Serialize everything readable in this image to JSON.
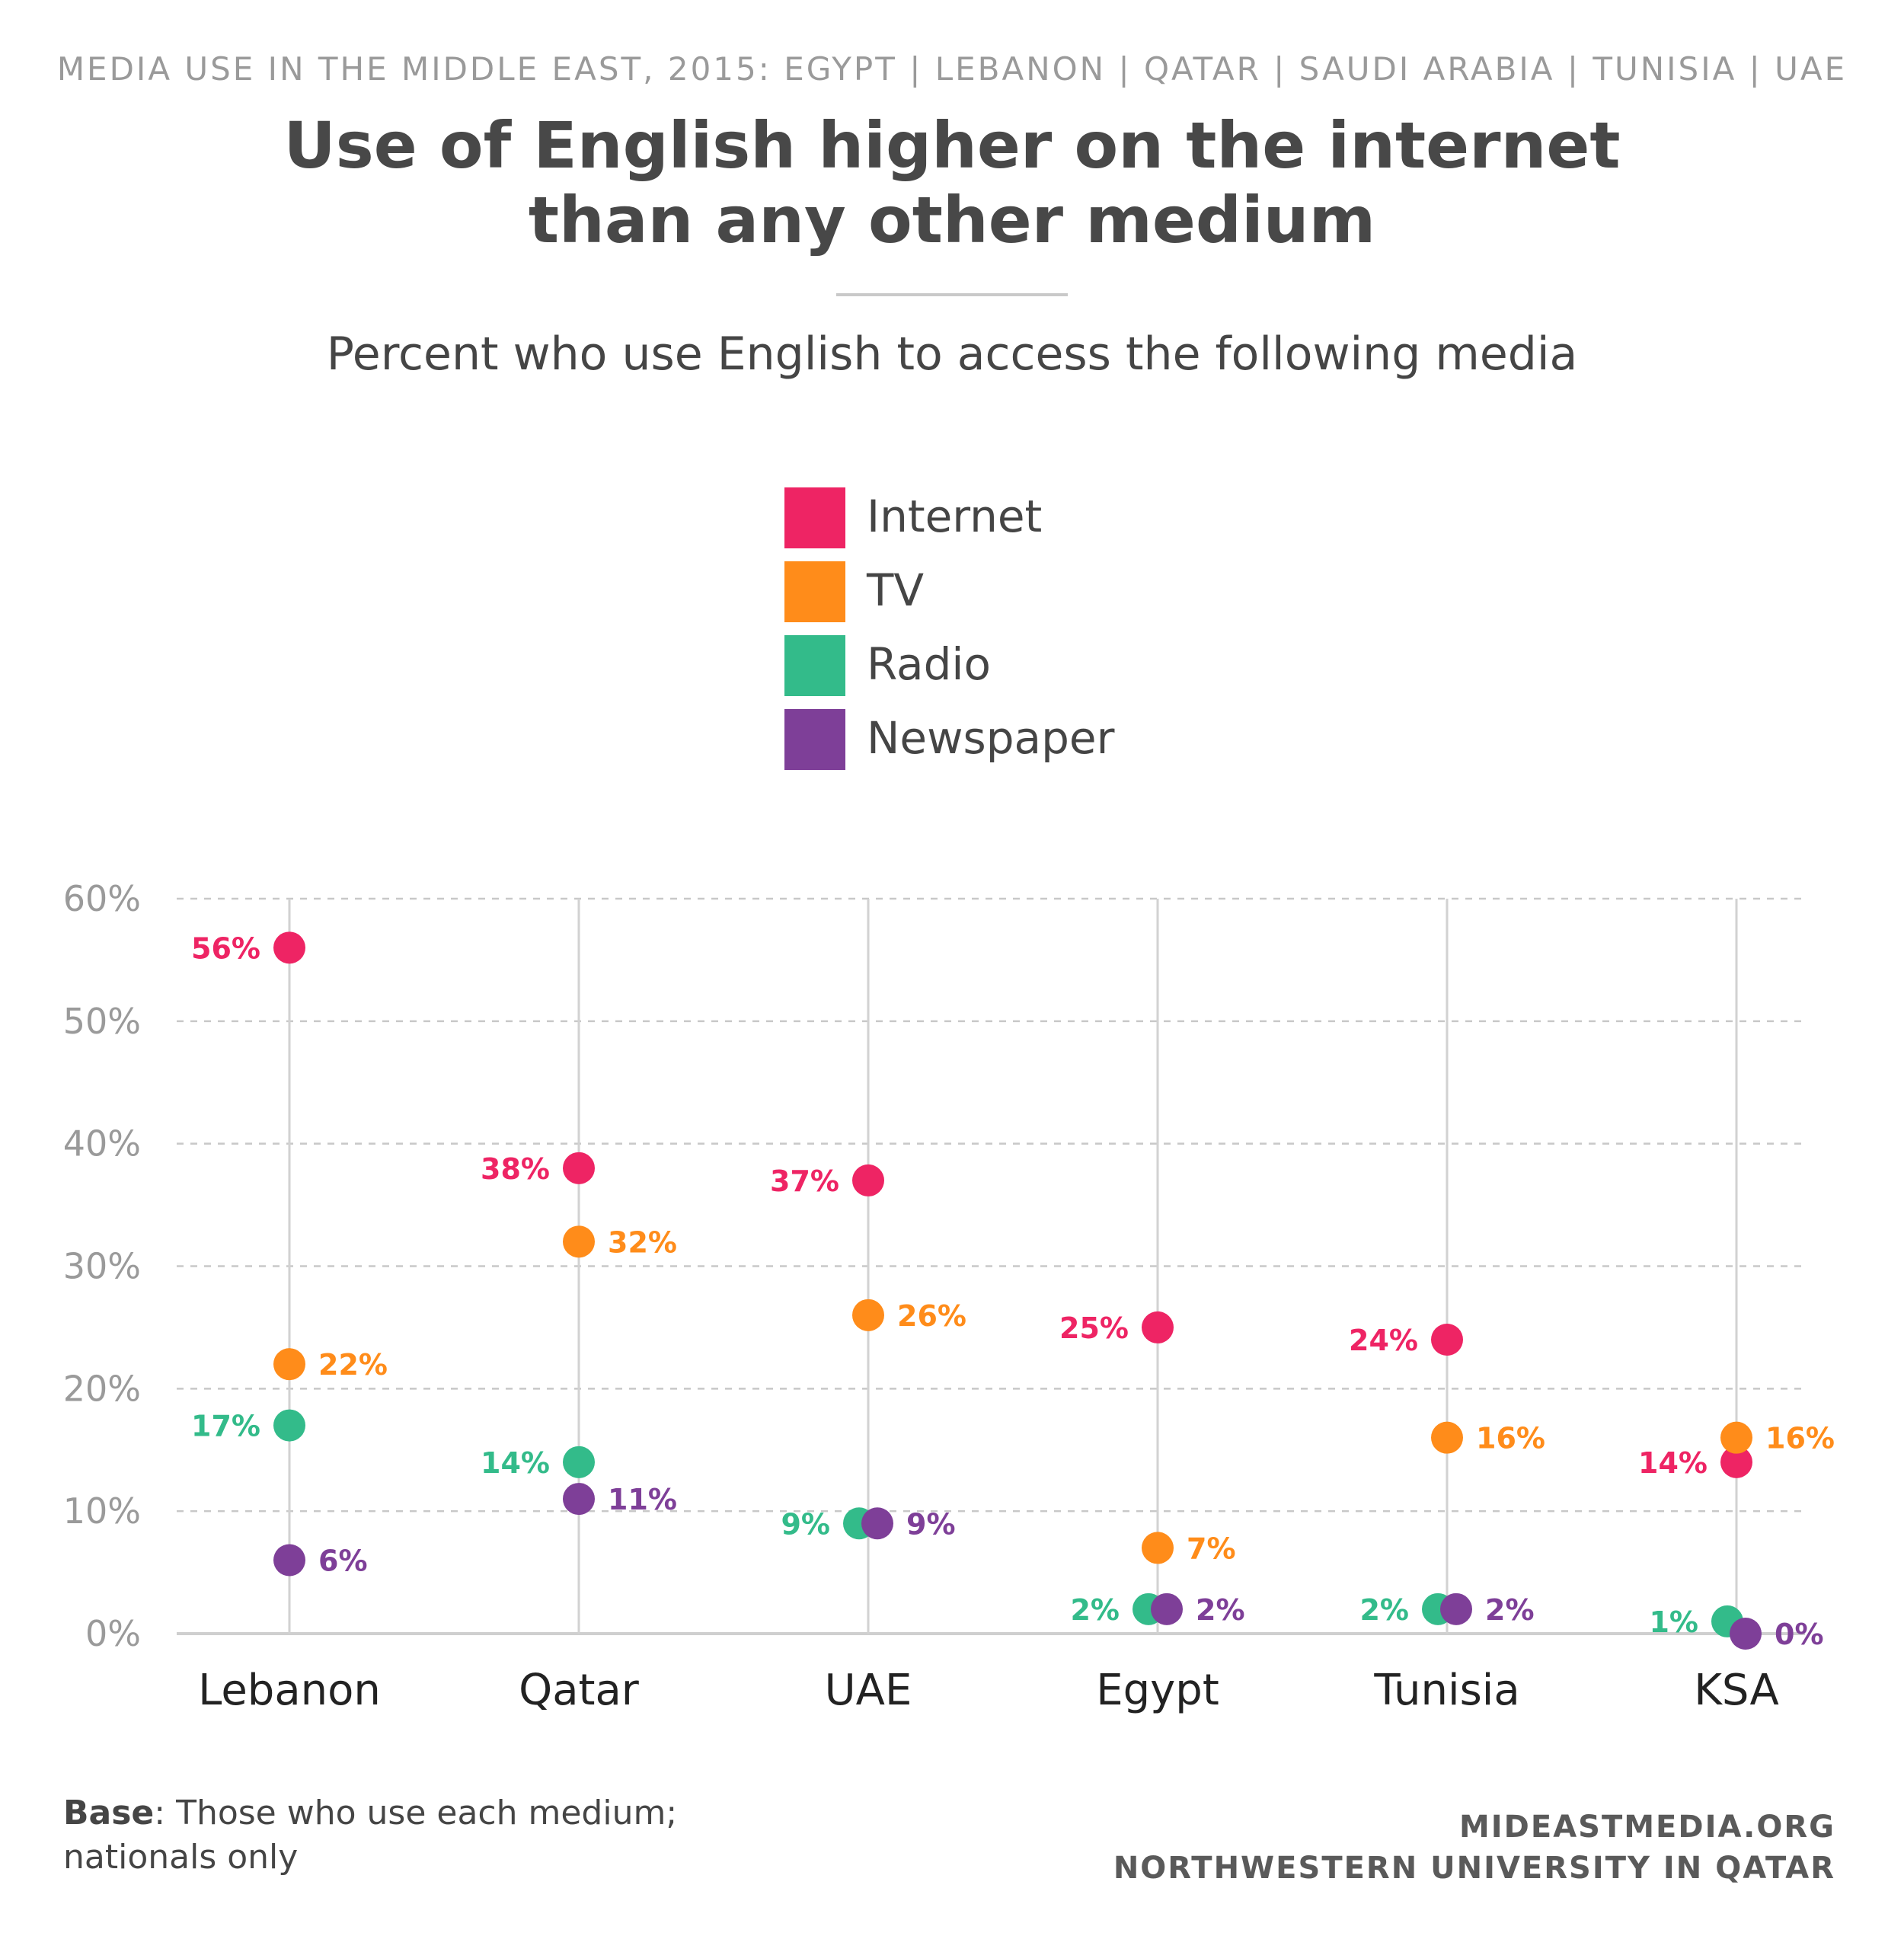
{
  "header": {
    "supertitle": "MEDIA USE IN THE MIDDLE EAST, 2015: EGYPT | LEBANON | QATAR | SAUDI ARABIA | TUNISIA | UAE",
    "title_line1": "Use of English higher on the internet",
    "title_line2": "than any other medium",
    "subtitle": "Percent who use English to access the following media"
  },
  "footer": {
    "base_label": "Base",
    "base_text": ": Those who use each medium;",
    "base_text2": "nationals only",
    "credit_line1": "MIDEASTMEDIA.ORG",
    "credit_line2": "NORTHWESTERN UNIVERSITY IN QATAR"
  },
  "chart_data": {
    "type": "scatter",
    "title": "Use of English higher on the internet than any other medium",
    "subtitle": "Percent who use English to access the following media",
    "categories": [
      "Lebanon",
      "Qatar",
      "UAE",
      "Egypt",
      "Tunisia",
      "KSA"
    ],
    "ylim": [
      0,
      60
    ],
    "yticks": [
      0,
      10,
      20,
      30,
      40,
      50,
      60
    ],
    "ytick_labels": [
      "0%",
      "10%",
      "20%",
      "30%",
      "40%",
      "50%",
      "60%"
    ],
    "grid": "horizontal-dashed",
    "legend_position": "top-center",
    "series": [
      {
        "name": "Internet",
        "color": "#ee2464",
        "values": [
          56,
          38,
          37,
          25,
          24,
          14
        ],
        "labels": [
          "56%",
          "38%",
          "37%",
          "25%",
          "24%",
          "14%"
        ]
      },
      {
        "name": "TV",
        "color": "#ff8c1a",
        "values": [
          22,
          32,
          26,
          7,
          16,
          16
        ],
        "labels": [
          "22%",
          "32%",
          "26%",
          "7%",
          "16%",
          "16%"
        ]
      },
      {
        "name": "Radio",
        "color": "#33bb8a",
        "values": [
          17,
          14,
          9,
          2,
          2,
          1
        ],
        "labels": [
          "17%",
          "14%",
          "9%",
          "2%",
          "2%",
          "1%"
        ]
      },
      {
        "name": "Newspaper",
        "color": "#7e3f98",
        "values": [
          6,
          11,
          9,
          2,
          2,
          0
        ],
        "labels": [
          "6%",
          "11%",
          "9%",
          "2%",
          "2%",
          "0%"
        ]
      }
    ]
  }
}
